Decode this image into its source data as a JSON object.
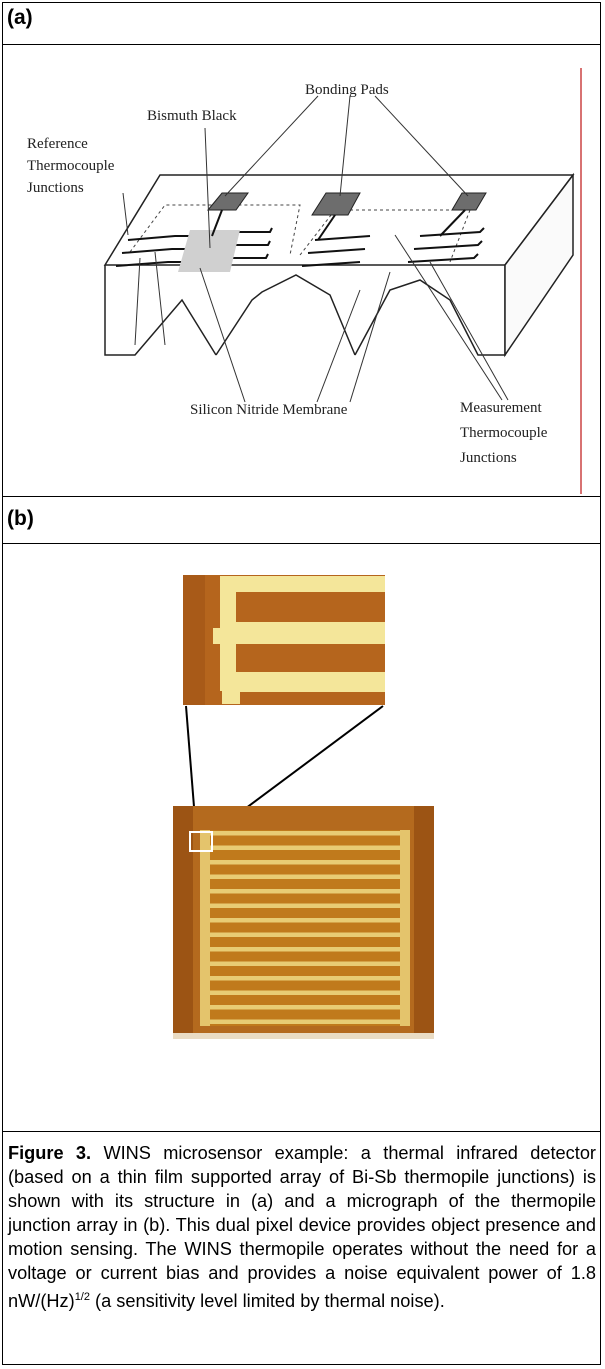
{
  "panels": {
    "a_label": "(a)",
    "b_label": "(b)"
  },
  "diagram": {
    "bonding_pads": "Bonding Pads",
    "bismuth_black": "Bismuth Black",
    "reference_tc": [
      "Reference",
      "Thermocouple",
      "Junctions"
    ],
    "silicon_nitride": "Silicon Nitride Membrane",
    "measurement_tc": [
      "Measurement",
      "Thermocouple",
      "Junctions"
    ]
  },
  "caption": {
    "lead": "Figure 3.",
    "text_1": "  WINS microsensor example: a thermal infrared detector (based on a thin film supported array of Bi-Sb thermopile junctions) is shown with its structure in (a) and a micrograph of the thermopile junction array in (b).  This dual pixel device provides object presence and motion sensing.  The WINS thermopile operates without the need for a voltage or current bias and provides a noise equivalent power of 1.8 nW/(Hz)",
    "exponent": "1/2",
    "text_2": " (a sensitivity level limited by thermal noise)."
  }
}
